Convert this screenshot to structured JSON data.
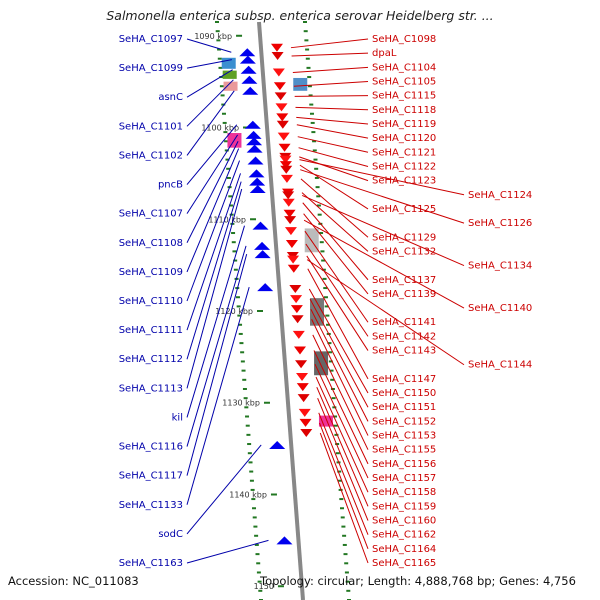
{
  "title": "Salmonella enterica subsp. enterica serovar Heidelberg str. ...",
  "accession": "Accession: NC_011083",
  "topology": "Topology: circular; Length: 4,888,768 bp; Genes: 4,756",
  "colors": {
    "backbone": "#888888",
    "forward_label": "#cc0000",
    "reverse_label": "#0000aa",
    "forward_feature": "#ee0000",
    "reverse_feature": "#0000ee",
    "tick": "#227722"
  },
  "scale_marks": [
    {
      "label": "1090 kbp",
      "kbp": 1090
    },
    {
      "label": "1100 kbp",
      "kbp": 1100
    },
    {
      "label": "1110 kbp",
      "kbp": 1110
    },
    {
      "label": "1120 kbp",
      "kbp": 1120
    },
    {
      "label": "1130 kbp",
      "kbp": 1130
    },
    {
      "label": "1140 kbp",
      "kbp": 1140
    },
    {
      "label": "1150",
      "kbp": 1150
    }
  ],
  "reverse_genes": [
    {
      "name": "SeHA_C1097",
      "kbp": 1091.8
    },
    {
      "name": "SeHA_C1099",
      "kbp": 1092.6
    },
    {
      "name": "asnC",
      "kbp": 1093.7
    },
    {
      "name": "SeHA_C1101",
      "kbp": 1094.8
    },
    {
      "name": "SeHA_C1102",
      "kbp": 1096.0
    },
    {
      "name": "pncB",
      "kbp": 1099.7
    },
    {
      "name": "SeHA_C1107",
      "kbp": 1100.8
    },
    {
      "name": "SeHA_C1108",
      "kbp": 1101.5
    },
    {
      "name": "SeHA_C1109",
      "kbp": 1102.3
    },
    {
      "name": "SeHA_C1110",
      "kbp": 1103.6
    },
    {
      "name": "SeHA_C1111",
      "kbp": 1105.0
    },
    {
      "name": "SeHA_C1112",
      "kbp": 1105.9
    },
    {
      "name": "SeHA_C1113",
      "kbp": 1106.7
    },
    {
      "name": "kil",
      "kbp": 1110.7
    },
    {
      "name": "SeHA_C1116",
      "kbp": 1112.9
    },
    {
      "name": "SeHA_C1117",
      "kbp": 1113.8
    },
    {
      "name": "SeHA_C1133",
      "kbp": 1117.4
    },
    {
      "name": "sodC",
      "kbp": 1134.6
    },
    {
      "name": "SeHA_C1163",
      "kbp": 1145.0
    }
  ],
  "forward_genes": [
    {
      "name": "SeHA_C1098",
      "kbp": 1091.3
    },
    {
      "name": "dpaL",
      "kbp": 1092.2
    },
    {
      "name": "SeHA_C1104",
      "kbp": 1094.0
    },
    {
      "name": "SeHA_C1105",
      "kbp": 1095.5
    },
    {
      "name": "SeHA_C1115",
      "kbp": 1096.6
    },
    {
      "name": "SeHA_C1118",
      "kbp": 1097.8
    },
    {
      "name": "SeHA_C1119",
      "kbp": 1098.9
    },
    {
      "name": "SeHA_C1120",
      "kbp": 1099.7
    },
    {
      "name": "SeHA_C1121",
      "kbp": 1101.0
    },
    {
      "name": "SeHA_C1122",
      "kbp": 1102.2
    },
    {
      "name": "SeHA_C1123",
      "kbp": 1103.2
    },
    {
      "name": "SeHA_C1124",
      "kbp": 1103.5
    },
    {
      "name": "SeHA_C1125",
      "kbp": 1104.1
    },
    {
      "name": "SeHA_C1126",
      "kbp": 1104.6
    },
    {
      "name": "SeHA_C1129",
      "kbp": 1105.6
    },
    {
      "name": "SeHA_C1132",
      "kbp": 1107.1
    },
    {
      "name": "SeHA_C1134",
      "kbp": 1107.4
    },
    {
      "name": "SeHA_C1137",
      "kbp": 1108.2
    },
    {
      "name": "SeHA_C1139",
      "kbp": 1109.4
    },
    {
      "name": "SeHA_C1140",
      "kbp": 1110.1
    },
    {
      "name": "SeHA_C1141",
      "kbp": 1111.3
    },
    {
      "name": "SeHA_C1142",
      "kbp": 1112.7
    },
    {
      "name": "SeHA_C1143",
      "kbp": 1114.0
    },
    {
      "name": "SeHA_C1144",
      "kbp": 1114.4
    },
    {
      "name": "SeHA_C1147",
      "kbp": 1115.4
    },
    {
      "name": "SeHA_C1150",
      "kbp": 1117.6
    },
    {
      "name": "SeHA_C1151",
      "kbp": 1118.7
    },
    {
      "name": "SeHA_C1152",
      "kbp": 1119.8
    },
    {
      "name": "SeHA_C1153",
      "kbp": 1120.9
    },
    {
      "name": "SeHA_C1155",
      "kbp": 1122.6
    },
    {
      "name": "SeHA_C1156",
      "kbp": 1124.3
    },
    {
      "name": "SeHA_C1157",
      "kbp": 1125.8
    },
    {
      "name": "SeHA_C1158",
      "kbp": 1127.2
    },
    {
      "name": "SeHA_C1159",
      "kbp": 1128.3
    },
    {
      "name": "SeHA_C1160",
      "kbp": 1129.5
    },
    {
      "name": "SeHA_C1162",
      "kbp": 1131.1
    },
    {
      "name": "SeHA_C1164",
      "kbp": 1132.2
    },
    {
      "name": "SeHA_C1165",
      "kbp": 1133.3
    }
  ]
}
